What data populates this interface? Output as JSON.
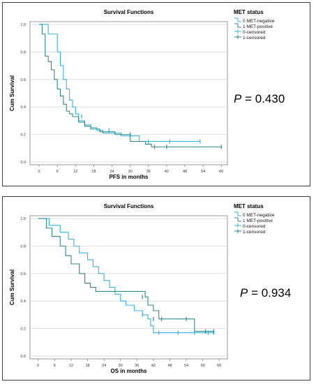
{
  "colors": {
    "met_negative": "#35b3e6",
    "met_positive": "#2f8a86",
    "grid": "#d8d8d8",
    "axis": "#808080"
  },
  "chart_data": [
    {
      "type": "line",
      "title": "Survival Functions",
      "xlabel": "PFS in months",
      "ylabel": "Cum Survival",
      "xticks": [
        0,
        6,
        12,
        18,
        24,
        30,
        36,
        42,
        48,
        54,
        60
      ],
      "yticks": [
        0.0,
        0.2,
        0.4,
        0.6,
        0.8,
        1.0
      ],
      "ytick_labels": [
        "0.0",
        "0.2",
        "0.4",
        "0.6",
        "0.8",
        "1.0"
      ],
      "xlim": [
        -3,
        62
      ],
      "ylim": [
        -0.02,
        1.02
      ],
      "grid": "horizontal",
      "legend_title": "MET status",
      "legend": [
        "0 MET-negative",
        "1 MET-positive",
        "0-censored",
        "1-censored"
      ],
      "p_label": "P",
      "p_value": "= 0.430",
      "series": [
        {
          "name": "MET-negative",
          "step_x": [
            0,
            3,
            6,
            7,
            8,
            9,
            10,
            11,
            12,
            13,
            15,
            17,
            19,
            21,
            27,
            33,
            38,
            53
          ],
          "step_y": [
            1.0,
            0.93,
            0.8,
            0.7,
            0.6,
            0.53,
            0.45,
            0.4,
            0.35,
            0.3,
            0.27,
            0.25,
            0.23,
            0.21,
            0.19,
            0.15,
            0.15,
            0.15
          ],
          "censor_x": [
            14,
            23,
            36,
            43,
            53
          ],
          "censor_y": [
            0.33,
            0.23,
            0.15,
            0.15,
            0.15
          ]
        },
        {
          "name": "MET-positive",
          "step_x": [
            0,
            1,
            2,
            3,
            4,
            5,
            6,
            7,
            8,
            9,
            10,
            11,
            13,
            15,
            17,
            20,
            25,
            30,
            35,
            37,
            60
          ],
          "step_y": [
            1.0,
            0.93,
            0.77,
            0.73,
            0.67,
            0.6,
            0.53,
            0.48,
            0.42,
            0.37,
            0.35,
            0.33,
            0.29,
            0.26,
            0.24,
            0.22,
            0.2,
            0.15,
            0.13,
            0.11,
            0.11
          ],
          "censor_x": [
            30,
            38,
            42,
            60
          ],
          "censor_y": [
            0.2,
            0.11,
            0.11,
            0.11
          ]
        }
      ]
    },
    {
      "type": "line",
      "title": "Survival Functions",
      "xlabel": "OS in months",
      "ylabel": "Cum Survival",
      "xticks": [
        0,
        6,
        12,
        18,
        24,
        30,
        36,
        42,
        48,
        54,
        60,
        66
      ],
      "yticks": [
        0.0,
        0.2,
        0.4,
        0.6,
        0.8,
        1.0
      ],
      "ytick_labels": [
        "0.0",
        "0.2",
        "0.4",
        "0.6",
        "0.8",
        "1.0"
      ],
      "xlim": [
        -3,
        69
      ],
      "ylim": [
        -0.02,
        1.02
      ],
      "grid": "horizontal",
      "legend_title": "MET status",
      "legend": [
        "0 MET-negative",
        "1 MET-positive",
        "0-censored",
        "1-censored"
      ],
      "p_label": "P",
      "p_value": "= 0.934",
      "series": [
        {
          "name": "MET-negative",
          "step_x": [
            0,
            4,
            8,
            11,
            13,
            15,
            18,
            20,
            22,
            24,
            26,
            28,
            30,
            32,
            35,
            38,
            40,
            41,
            42,
            64
          ],
          "step_y": [
            1.0,
            0.95,
            0.9,
            0.85,
            0.8,
            0.75,
            0.7,
            0.65,
            0.6,
            0.55,
            0.5,
            0.45,
            0.4,
            0.37,
            0.33,
            0.3,
            0.27,
            0.22,
            0.17,
            0.17
          ],
          "censor_x": [
            38,
            44,
            51,
            57,
            62,
            64
          ],
          "censor_y": [
            0.3,
            0.17,
            0.17,
            0.17,
            0.17,
            0.17
          ]
        },
        {
          "name": "MET-positive",
          "step_x": [
            0,
            3,
            5,
            8,
            10,
            12,
            15,
            17,
            19,
            21,
            37,
            39,
            40,
            42,
            44,
            55,
            57,
            61,
            64
          ],
          "step_y": [
            1.0,
            0.93,
            0.87,
            0.8,
            0.73,
            0.67,
            0.6,
            0.53,
            0.5,
            0.47,
            0.47,
            0.43,
            0.37,
            0.33,
            0.27,
            0.27,
            0.18,
            0.18,
            0.18
          ],
          "censor_x": [
            38,
            42,
            45,
            54,
            61,
            64
          ],
          "censor_y": [
            0.43,
            0.27,
            0.27,
            0.27,
            0.18,
            0.18
          ]
        }
      ]
    }
  ]
}
